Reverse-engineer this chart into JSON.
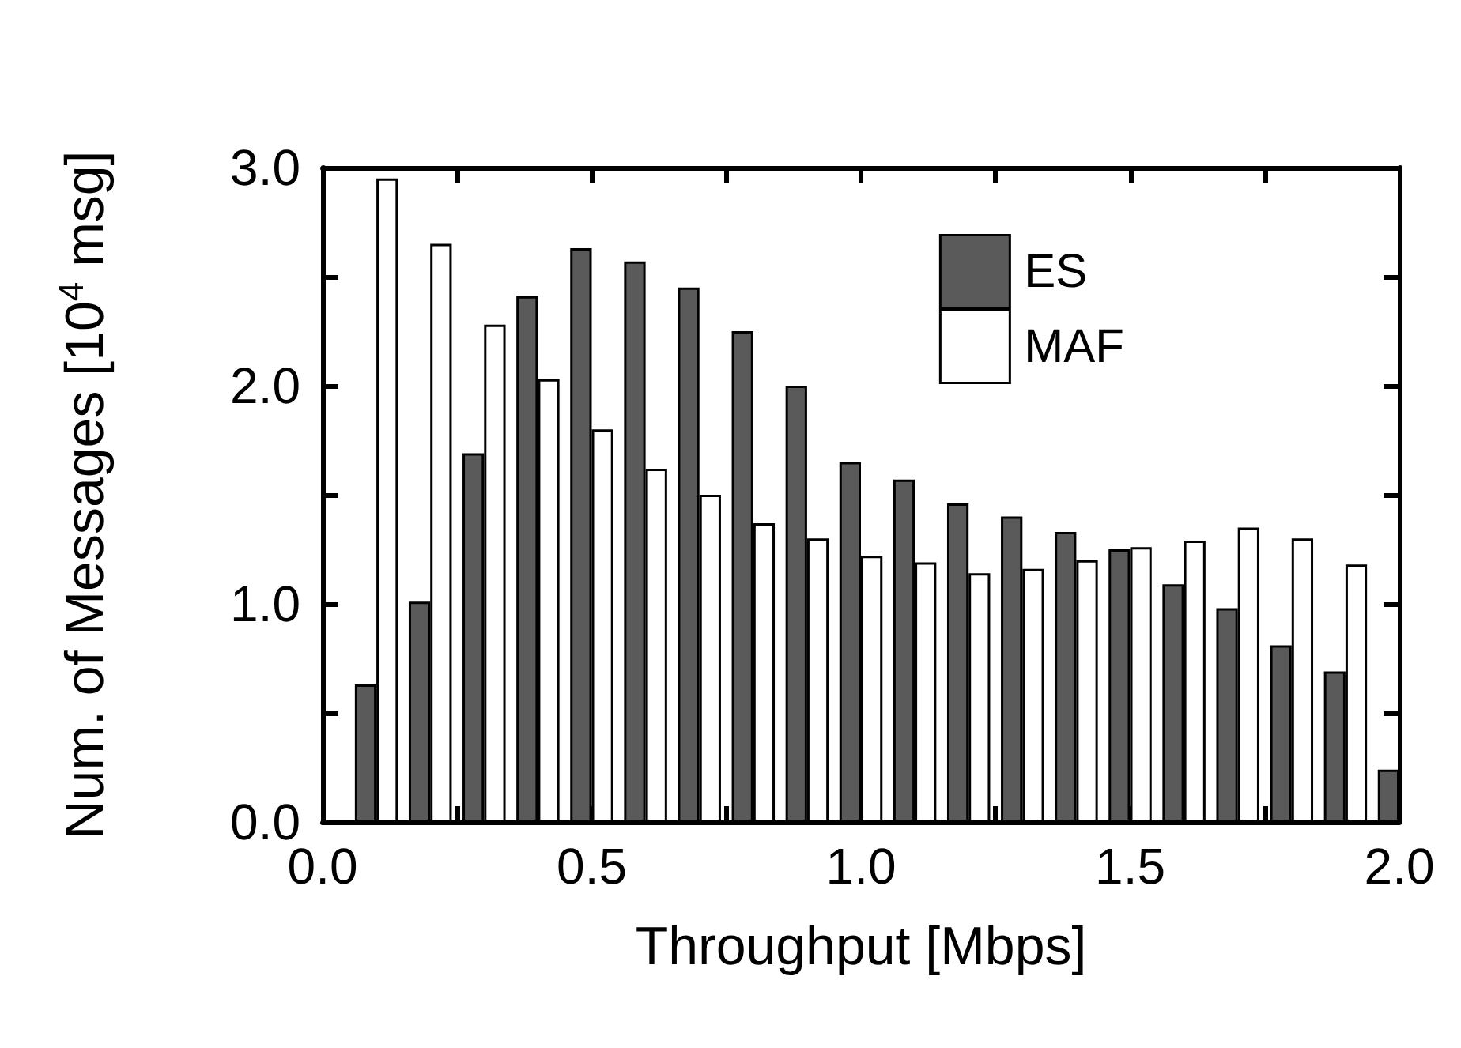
{
  "chart_data": {
    "type": "bar",
    "xlabel": "Throughput [Mbps]",
    "ylabel": "Num. of Messages [10$^{4}$ msg]",
    "xlim": [
      0,
      2.0
    ],
    "xticks": [
      {
        "value": 0,
        "label": "0.0"
      },
      {
        "value": 0.25,
        "label": null
      },
      {
        "value": 0.5,
        "label": "0.5"
      },
      {
        "value": 0.75,
        "label": null
      },
      {
        "value": 1.0,
        "label": "1.0"
      },
      {
        "value": 1.25,
        "label": null
      },
      {
        "value": 1.5,
        "label": "1.5"
      },
      {
        "value": 1.75,
        "label": null
      },
      {
        "value": 2.0,
        "label": "2.0"
      }
    ],
    "ylim": [
      0,
      3.0
    ],
    "yticks": [
      {
        "value": 0,
        "label": "0.0"
      },
      {
        "value": 0.5,
        "label": null
      },
      {
        "value": 1.0,
        "label": "1.0"
      },
      {
        "value": 1.5,
        "label": null
      },
      {
        "value": 2.0,
        "label": "2.0"
      },
      {
        "value": 2.5,
        "label": null
      },
      {
        "value": 3.0,
        "label": "3.0"
      }
    ],
    "legend": "top right",
    "grid": false,
    "series": [
      {
        "name": "ES",
        "color": "#5a5a5a",
        "x": [
          0.08,
          0.18,
          0.28,
          0.38,
          0.48,
          0.58,
          0.68,
          0.78,
          0.88,
          0.98,
          1.08,
          1.18,
          1.28,
          1.38,
          1.48,
          1.58,
          1.68,
          1.78,
          1.88,
          1.98
        ],
        "values": [
          0.63,
          1.01,
          1.69,
          2.41,
          2.63,
          2.57,
          2.45,
          2.25,
          2.0,
          1.65,
          1.57,
          1.46,
          1.4,
          1.33,
          1.25,
          1.09,
          0.98,
          0.81,
          0.69,
          0.24
        ]
      },
      {
        "name": "MAF",
        "color": "#ffffff",
        "x": [
          0.12,
          0.22,
          0.32,
          0.42,
          0.52,
          0.62,
          0.72,
          0.82,
          0.92,
          1.02,
          1.12,
          1.22,
          1.32,
          1.42,
          1.52,
          1.62,
          1.72,
          1.82,
          1.92
        ],
        "values": [
          2.95,
          2.65,
          2.28,
          2.03,
          1.8,
          1.62,
          1.5,
          1.37,
          1.3,
          1.22,
          1.19,
          1.14,
          1.16,
          1.2,
          1.26,
          1.29,
          1.35,
          1.3,
          1.18
        ]
      }
    ]
  }
}
